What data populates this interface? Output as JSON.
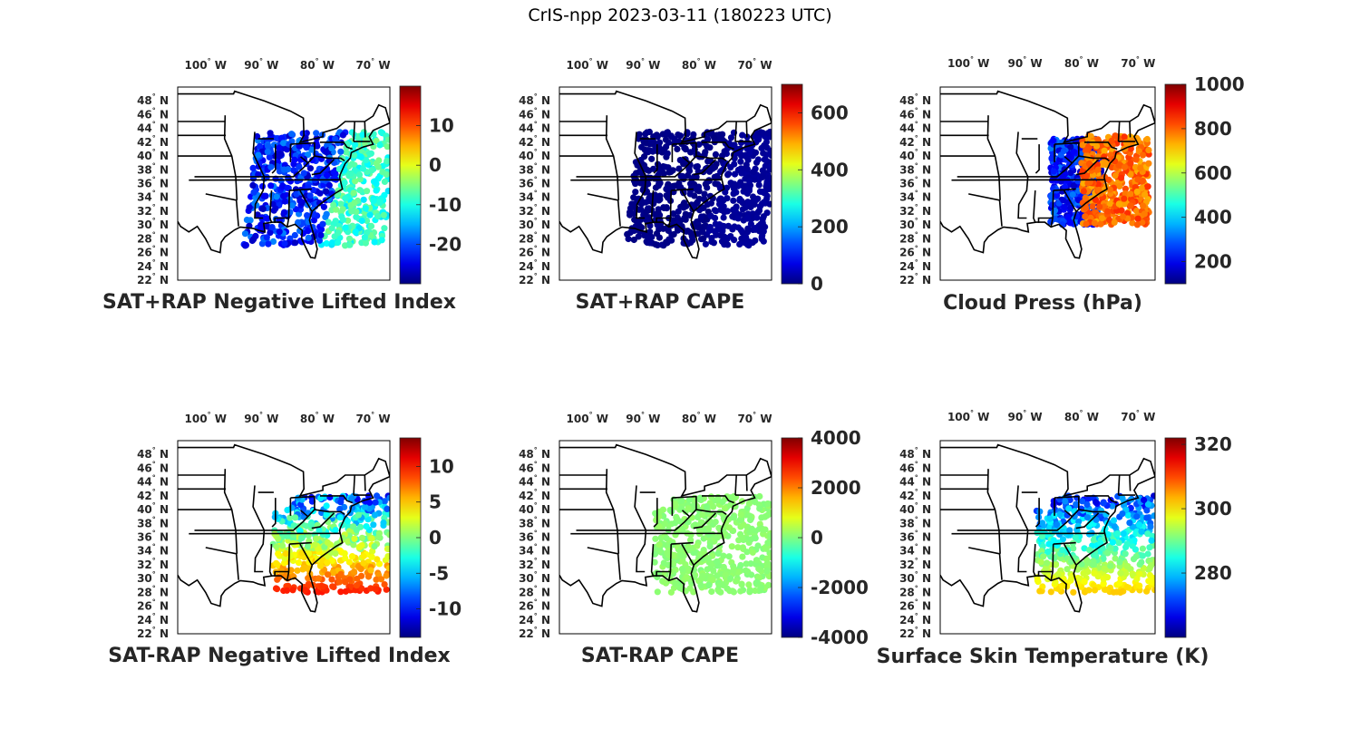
{
  "figure": {
    "title": "CrIS-npp 2023-03-11 (180223 UTC)"
  },
  "colors": {
    "frame": "#000000",
    "text": "#262626",
    "map_lines": "#000000",
    "colormap": "jet"
  },
  "chart_data": [
    {
      "type": "scatter",
      "title": "SAT+RAP Negative Lifted Index",
      "lon_ticks": [
        "100° W",
        "90° W",
        "80° W",
        "70° W"
      ],
      "lat_ticks": [
        "48° N",
        "46° N",
        "44° N",
        "42° N",
        "40° N",
        "38° N",
        "36° N",
        "34° N",
        "32° N",
        "30° N",
        "28° N",
        "26° N",
        "24° N",
        "22° N"
      ],
      "colorbar": {
        "min": -30,
        "max": 20,
        "ticks": [
          10,
          0,
          -10,
          -20
        ]
      },
      "pattern": "swath",
      "points_note": "values mostly -25 to -10 over land, -15 to -5 over ocean",
      "value_range": [
        -27,
        -5
      ]
    },
    {
      "type": "scatter",
      "title": "SAT+RAP CAPE",
      "lon_ticks": [
        "100° W",
        "90° W",
        "80° W",
        "70° W"
      ],
      "lat_ticks": [
        "48° N",
        "46° N",
        "44° N",
        "42° N",
        "40° N",
        "38° N",
        "36° N",
        "34° N",
        "32° N",
        "30° N",
        "28° N",
        "26° N",
        "24° N",
        "22° N"
      ],
      "colorbar": {
        "min": 0,
        "max": 700,
        "ticks": [
          600,
          400,
          200,
          0
        ]
      },
      "pattern": "swath",
      "value_range": [
        0,
        20
      ]
    },
    {
      "type": "scatter",
      "title": "Cloud Press (hPa)",
      "lon_ticks": [
        "100° W",
        "90° W",
        "80° W",
        "70° W"
      ],
      "lat_ticks": [
        "48° N",
        "46° N",
        "44° N",
        "42° N",
        "40° N",
        "38° N",
        "36° N",
        "34° N",
        "32° N",
        "30° N",
        "28° N",
        "26° N",
        "24° N",
        "22° N"
      ],
      "colorbar": {
        "min": 100,
        "max": 1000,
        "ticks": [
          1000,
          800,
          600,
          400,
          200
        ]
      },
      "pattern": "cloud",
      "value_range": [
        150,
        850
      ]
    },
    {
      "type": "scatter",
      "title": "SAT-RAP Negative Lifted Index",
      "lon_ticks": [
        "100° W",
        "90° W",
        "80° W",
        "70° W"
      ],
      "lat_ticks": [
        "48° N",
        "46° N",
        "44° N",
        "42° N",
        "40° N",
        "38° N",
        "36° N",
        "34° N",
        "32° N",
        "30° N",
        "28° N",
        "26° N",
        "24° N",
        "22° N"
      ],
      "colorbar": {
        "min": -14,
        "max": 14,
        "ticks": [
          10,
          5,
          0,
          -5,
          -10
        ]
      },
      "pattern": "diff",
      "value_range": [
        -12,
        10
      ]
    },
    {
      "type": "scatter",
      "title": "SAT-RAP CAPE",
      "lon_ticks": [
        "100° W",
        "90° W",
        "80° W",
        "70° W"
      ],
      "lat_ticks": [
        "48° N",
        "46° N",
        "44° N",
        "42° N",
        "40° N",
        "38° N",
        "36° N",
        "34° N",
        "32° N",
        "30° N",
        "28° N",
        "26° N",
        "24° N",
        "22° N"
      ],
      "colorbar": {
        "min": -4000,
        "max": 4000,
        "ticks": [
          4000,
          2000,
          0,
          -2000,
          -4000
        ]
      },
      "pattern": "diff",
      "value_range": [
        0,
        200
      ]
    },
    {
      "type": "scatter",
      "title": "Surface Skin Temperature (K)",
      "lon_ticks": [
        "100° W",
        "90° W",
        "80° W",
        "70° W"
      ],
      "lat_ticks": [
        "48° N",
        "46° N",
        "44° N",
        "42° N",
        "40° N",
        "38° N",
        "36° N",
        "34° N",
        "32° N",
        "30° N",
        "28° N",
        "26° N",
        "24° N",
        "22° N"
      ],
      "colorbar": {
        "min": 260,
        "max": 322,
        "ticks": [
          320,
          300,
          280
        ]
      },
      "pattern": "diff",
      "value_range": [
        262,
        302
      ]
    }
  ]
}
